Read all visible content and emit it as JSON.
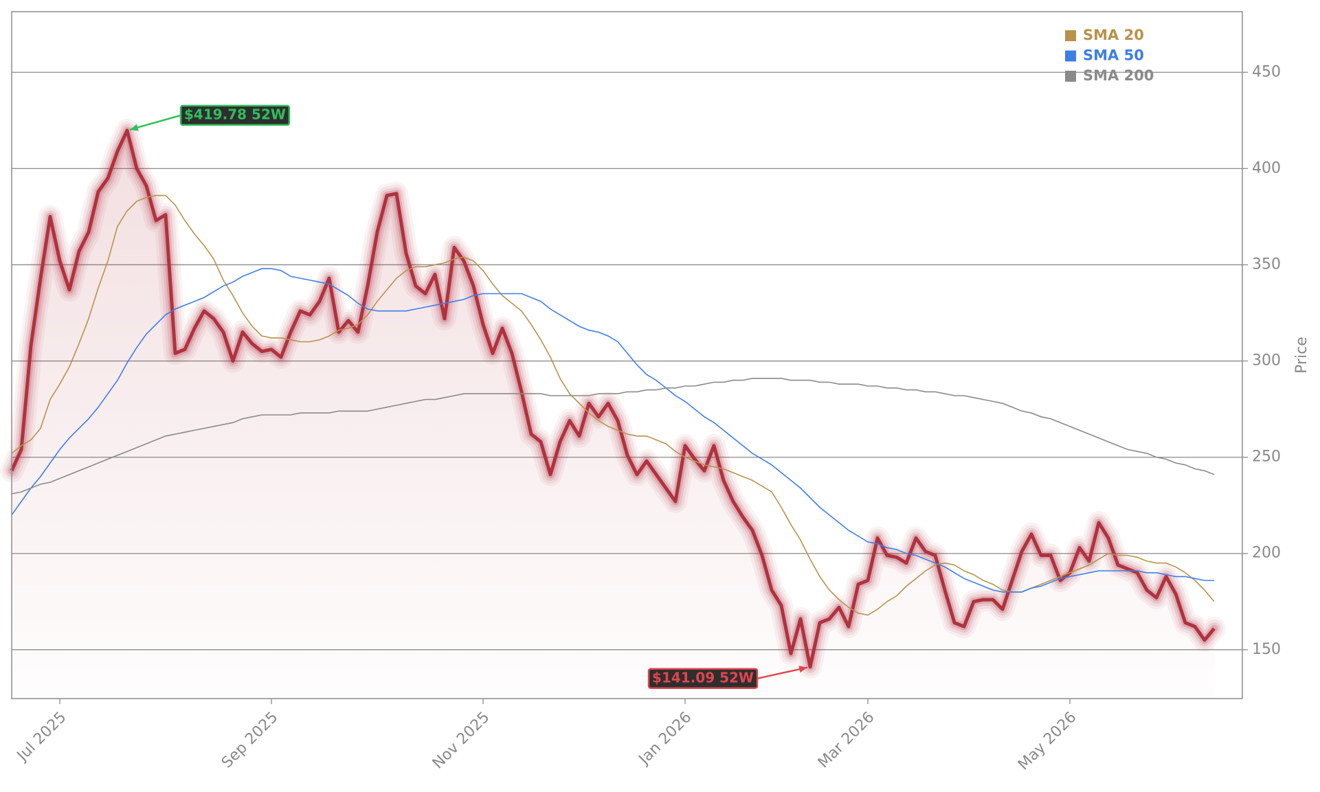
{
  "chart_data": {
    "type": "line",
    "y_label": "Price",
    "categories": [
      null,
      null,
      null,
      null,
      null,
      "Jul 2025",
      null,
      null,
      null,
      null,
      null,
      null,
      null,
      null,
      null,
      null,
      null,
      null,
      null,
      null,
      null,
      null,
      null,
      null,
      null,
      null,
      null,
      "Sep 2025",
      null,
      null,
      null,
      null,
      null,
      null,
      null,
      null,
      null,
      null,
      null,
      null,
      null,
      null,
      null,
      null,
      null,
      null,
      null,
      null,
      null,
      "Nov 2025",
      null,
      null,
      null,
      null,
      null,
      null,
      null,
      null,
      null,
      null,
      null,
      null,
      null,
      null,
      null,
      null,
      null,
      null,
      null,
      null,
      "Jan 2026",
      null,
      null,
      null,
      null,
      null,
      null,
      null,
      null,
      null,
      null,
      null,
      null,
      null,
      null,
      null,
      null,
      null,
      null,
      "Mar 2026",
      null,
      null,
      null,
      null,
      null,
      null,
      null,
      null,
      null,
      null,
      null,
      null,
      null,
      null,
      null,
      null,
      null,
      null,
      null,
      null,
      "May 2026",
      null,
      null,
      null,
      null,
      null,
      null,
      null,
      null,
      null,
      null,
      null,
      null,
      null,
      null,
      null
    ],
    "color": "#b0323f",
    "values": [
      243,
      254,
      308,
      343,
      375,
      352,
      337,
      357,
      367,
      388,
      395,
      409,
      419.78,
      400,
      391,
      373,
      376,
      304,
      306,
      317,
      326,
      322,
      315,
      300,
      315,
      309,
      305,
      306,
      302,
      315,
      326,
      324,
      331,
      343,
      315,
      321,
      315,
      339,
      367,
      386,
      387,
      356,
      339,
      335,
      345,
      322,
      359,
      352,
      339,
      319,
      304,
      317,
      304,
      284,
      262,
      258,
      241,
      258,
      269,
      261,
      278,
      271,
      278,
      269,
      251,
      241,
      248,
      241,
      234,
      227,
      256,
      249,
      243,
      256,
      238,
      227,
      219,
      212,
      199,
      181,
      173,
      148,
      166,
      141.09,
      164,
      166,
      172,
      162,
      184,
      186,
      208,
      199,
      198,
      195,
      208,
      201,
      199,
      181,
      164,
      162,
      175,
      176,
      176,
      171,
      186,
      201,
      210,
      199,
      199,
      186,
      190,
      203,
      196,
      216,
      208,
      194,
      192,
      190,
      181,
      177,
      188,
      179,
      164,
      162,
      155,
      161
    ],
    "series": [
      {
        "name": "SMA 20",
        "color": "#b8924a",
        "values": [
          252,
          256,
          259,
          265,
          280,
          288,
          297,
          309,
          322,
          338,
          352,
          370,
          378,
          383,
          385,
          386,
          386,
          381,
          373,
          366,
          360,
          353,
          342,
          334,
          325,
          318,
          313,
          312,
          312,
          311,
          310,
          310,
          311,
          313,
          316,
          317,
          319,
          324,
          331,
          337,
          343,
          347,
          349,
          349,
          350,
          351,
          353,
          354,
          352,
          347,
          340,
          334,
          330,
          326,
          319,
          311,
          302,
          291,
          283,
          278,
          273,
          269,
          266,
          264,
          262,
          261,
          261,
          259,
          257,
          253,
          250,
          248,
          246,
          245,
          244,
          242,
          240,
          238,
          235,
          232,
          224,
          215,
          207,
          197,
          188,
          181,
          176,
          172,
          169,
          168,
          171,
          175,
          178,
          183,
          187,
          191,
          194,
          195,
          194,
          191,
          189,
          186,
          184,
          181,
          180,
          180,
          182,
          184,
          186,
          188,
          190,
          192,
          194,
          197,
          200,
          199,
          199,
          198,
          196,
          195,
          195,
          193,
          190,
          186,
          181,
          175
        ]
      },
      {
        "name": "SMA 50",
        "color": "#3d7ee6",
        "values": [
          220,
          227,
          234,
          240,
          247,
          254,
          260,
          265,
          270,
          276,
          283,
          290,
          299,
          307,
          314,
          319,
          324,
          327,
          329,
          331,
          333,
          336,
          339,
          341,
          344,
          346,
          348,
          348,
          347,
          344,
          343,
          342,
          341,
          340,
          337,
          334,
          330,
          327,
          326,
          326,
          326,
          326,
          327,
          328,
          329,
          330,
          331,
          332,
          334,
          335,
          335,
          335,
          335,
          335,
          333,
          331,
          327,
          324,
          321,
          318,
          316,
          315,
          313,
          310,
          304,
          298,
          293,
          290,
          286,
          282,
          279,
          275,
          271,
          268,
          264,
          260,
          256,
          252,
          249,
          246,
          242,
          238,
          234,
          229,
          224,
          220,
          216,
          212,
          209,
          206,
          205,
          203,
          202,
          200,
          199,
          197,
          195,
          193,
          190,
          187,
          185,
          183,
          181,
          180,
          180,
          180,
          182,
          183,
          185,
          187,
          188,
          189,
          190,
          191,
          191,
          191,
          191,
          191,
          190,
          190,
          189,
          188,
          188,
          187,
          186,
          186
        ]
      },
      {
        "name": "SMA 200",
        "color": "#8a8a8a",
        "values": [
          231,
          232,
          234,
          236,
          237,
          239,
          241,
          243,
          245,
          247,
          249,
          251,
          253,
          255,
          257,
          259,
          261,
          262,
          263,
          264,
          265,
          266,
          267,
          268,
          270,
          271,
          272,
          272,
          272,
          272,
          273,
          273,
          273,
          273,
          274,
          274,
          274,
          274,
          275,
          276,
          277,
          278,
          279,
          280,
          280,
          281,
          282,
          283,
          283,
          283,
          283,
          283,
          283,
          283,
          283,
          283,
          282,
          282,
          282,
          282,
          282,
          283,
          283,
          283,
          284,
          284,
          285,
          285,
          286,
          286,
          287,
          287,
          288,
          289,
          289,
          290,
          290,
          291,
          291,
          291,
          291,
          290,
          290,
          290,
          289,
          289,
          288,
          288,
          288,
          287,
          287,
          286,
          286,
          285,
          285,
          284,
          284,
          283,
          282,
          282,
          281,
          280,
          279,
          278,
          276,
          274,
          273,
          271,
          270,
          268,
          266,
          264,
          262,
          260,
          258,
          256,
          254,
          253,
          252,
          250,
          249,
          247,
          246,
          244,
          243,
          241
        ]
      }
    ],
    "annotations": [
      {
        "text": "$419.78 52W",
        "color": "#2fbf5a"
      },
      {
        "text": "$141.09 52W",
        "color": "#e0454f"
      }
    ],
    "ylim": [
      124.6,
      481.5
    ],
    "yticks": [
      150,
      200,
      250,
      300,
      350,
      400,
      450
    ],
    "grid": true,
    "legend": "upper right"
  }
}
